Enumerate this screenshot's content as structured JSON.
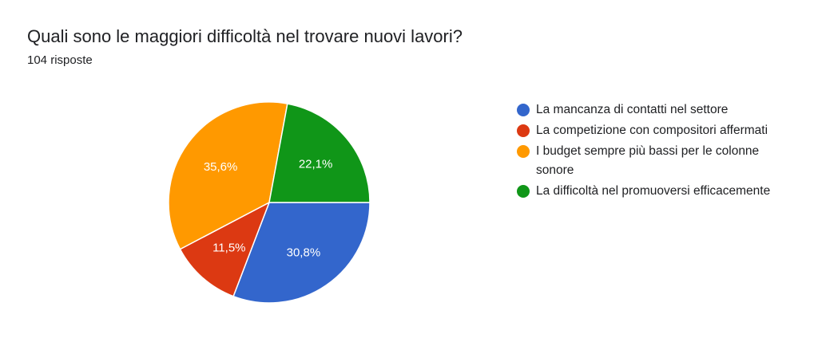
{
  "header": {
    "title": "Quali sono le maggiori difficoltà nel trovare nuovi lavori?",
    "subtitle": "104 risposte"
  },
  "chart_data": {
    "type": "pie",
    "title": "Quali sono le maggiori difficoltà nel trovare nuovi lavori?",
    "subtitle": "104 risposte",
    "legend_position": "right",
    "slices": [
      {
        "label": "La mancanza di contatti nel settore",
        "value": 30.8,
        "display": "30,8%",
        "color": "#3366cc"
      },
      {
        "label": "La competizione con compositori affermati",
        "value": 11.5,
        "display": "11,5%",
        "color": "#dc3912"
      },
      {
        "label": "I budget sempre più bassi per le colonne sonore",
        "value": 35.6,
        "display": "35,6%",
        "color": "#ff9900"
      },
      {
        "label": "La difficoltà nel promuoversi efficacemente",
        "value": 22.1,
        "display": "22,1%",
        "color": "#109618"
      }
    ]
  }
}
